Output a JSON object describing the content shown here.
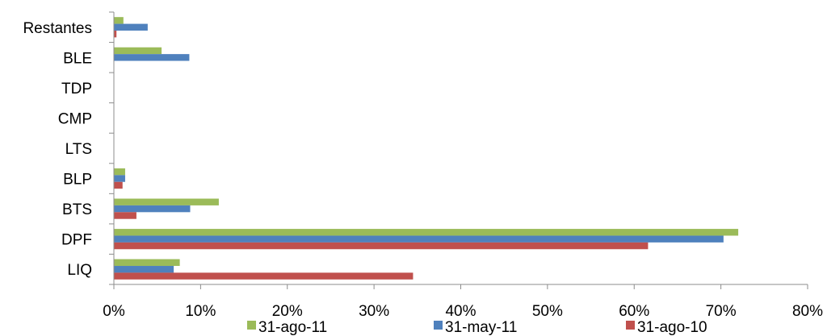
{
  "chart_data": {
    "type": "bar",
    "orientation": "horizontal",
    "categories": [
      "LIQ",
      "DPF",
      "BTS",
      "BLP",
      "LTS",
      "CMP",
      "TDP",
      "BLE",
      "Restantes"
    ],
    "series": [
      {
        "name": "31-ago-11",
        "color": "#9bbb59",
        "values": [
          7.6,
          72.0,
          12.1,
          1.3,
          0,
          0,
          0,
          5.5,
          1.1
        ]
      },
      {
        "name": "31-may-11",
        "color": "#4f81bd",
        "values": [
          6.9,
          70.3,
          8.8,
          1.3,
          0,
          0,
          0,
          8.7,
          3.9
        ]
      },
      {
        "name": "31-ago-10",
        "color": "#c0504d",
        "values": [
          34.5,
          61.6,
          2.6,
          1.0,
          0,
          0,
          0,
          0,
          0.3
        ]
      }
    ],
    "x_ticks": [
      "0%",
      "10%",
      "20%",
      "30%",
      "40%",
      "50%",
      "60%",
      "70%",
      "80%"
    ],
    "xlim": [
      0,
      80
    ],
    "x_unit": "%",
    "grid": false,
    "legend_position": "bottom"
  }
}
